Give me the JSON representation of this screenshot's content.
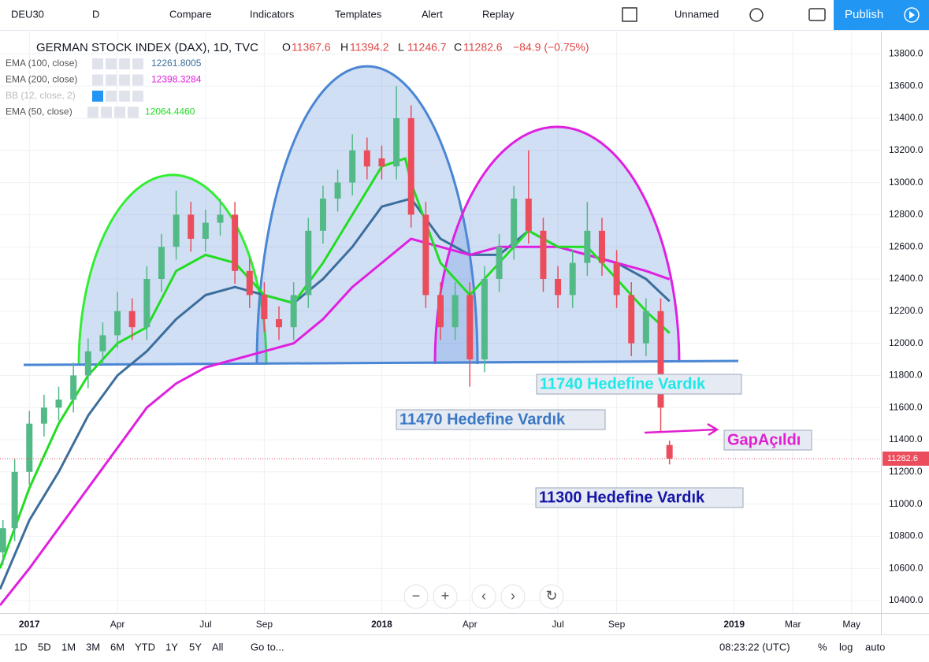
{
  "toolbar": {
    "symbol": "DEU30",
    "interval": "D",
    "buttons": [
      "Compare",
      "Indicators",
      "Templates",
      "Alert",
      "Replay"
    ],
    "layout_name": "Unnamed",
    "publish": "Publish"
  },
  "chart_data": {
    "type": "candlestick",
    "title": "GERMAN STOCK INDEX (DAX), 1D, TVC",
    "ohlc_letters": [
      "O",
      "H",
      "L",
      "C"
    ],
    "change": "−84.9 (−0.75%)",
    "x": [
      -0.9,
      -0.5,
      0,
      0.5,
      1,
      1.5,
      2,
      2.5,
      3,
      3.5,
      4,
      4.5,
      5,
      5.5,
      6,
      6.5,
      7,
      7.5,
      8,
      8.5,
      9,
      9.5,
      10,
      10.5,
      11,
      11.5,
      12,
      12.5,
      13,
      13.5,
      14,
      14.5,
      15,
      15.5,
      16,
      16.5,
      17,
      17.5,
      18,
      18.5,
      19,
      19.5,
      20,
      20.5,
      21,
      21.5,
      21.8
    ],
    "open": [
      10700,
      10850,
      11200,
      11500,
      11600,
      11650,
      11800,
      11950,
      12050,
      12200,
      12100,
      12400,
      12600,
      12800,
      12650,
      12750,
      12800,
      12450,
      12300,
      12150,
      12100,
      12300,
      12700,
      12900,
      13000,
      13200,
      13150,
      13100,
      13400,
      12800,
      12300,
      12100,
      12300,
      11900,
      12400,
      12600,
      12900,
      12700,
      12400,
      12300,
      12500,
      12700,
      12500,
      12300,
      12000,
      12200,
      11367.6
    ],
    "high": [
      10900,
      11280,
      11580,
      11680,
      11730,
      11880,
      12030,
      12130,
      12320,
      12280,
      12480,
      12680,
      12950,
      12880,
      12830,
      12900,
      12880,
      12530,
      12380,
      12230,
      12380,
      12780,
      12980,
      13080,
      13300,
      13280,
      13230,
      13600,
      13480,
      12880,
      12380,
      12380,
      12380,
      12480,
      12680,
      12980,
      13200,
      12780,
      12480,
      12580,
      12880,
      12780,
      12580,
      12380,
      12280,
      12280,
      11394.2
    ],
    "low": [
      10620,
      10770,
      11120,
      11420,
      11520,
      11570,
      11720,
      11870,
      11970,
      12020,
      12020,
      12320,
      12520,
      12570,
      12570,
      12670,
      12370,
      12220,
      12070,
      12020,
      12020,
      12220,
      12620,
      12820,
      12920,
      13020,
      13020,
      13020,
      12720,
      12220,
      12020,
      12020,
      11730,
      11820,
      12320,
      12520,
      12620,
      12320,
      12220,
      12220,
      12420,
      12420,
      12220,
      11920,
      11920,
      11450,
      11246.7
    ],
    "close": [
      10850,
      11200,
      11500,
      11600,
      11650,
      11800,
      11950,
      12050,
      12200,
      12100,
      12400,
      12600,
      12800,
      12650,
      12750,
      12800,
      12450,
      12300,
      12150,
      12100,
      12300,
      12700,
      12900,
      13000,
      13200,
      13100,
      13100,
      13400,
      12800,
      12300,
      12100,
      12300,
      11900,
      12400,
      12600,
      12900,
      12700,
      12400,
      12300,
      12500,
      12700,
      12500,
      12300,
      12000,
      12200,
      11600,
      11282.6
    ],
    "up_color": "#53b987",
    "down_color": "#eb4d5c",
    "indicators": [
      {
        "name": "EMA (100, close)",
        "value_label": "12261.8005",
        "color": "#3c6e9c",
        "x": [
          -1,
          0,
          1,
          2,
          3,
          4,
          5,
          6,
          7,
          8,
          9,
          10,
          11,
          12,
          13,
          14,
          15,
          16,
          17,
          18,
          19,
          20,
          21,
          21.8
        ],
        "values": [
          10470,
          10900,
          11200,
          11550,
          11800,
          11950,
          12150,
          12300,
          12350,
          12300,
          12250,
          12400,
          12600,
          12850,
          12900,
          12650,
          12550,
          12550,
          12700,
          12600,
          12550,
          12500,
          12400,
          12261.8
        ]
      },
      {
        "name": "EMA (200, close)",
        "value_label": "12398.3284",
        "color": "#e020e0",
        "x": [
          -1,
          0,
          1,
          2,
          3,
          4,
          5,
          6,
          7,
          8,
          9,
          10,
          11,
          12,
          13,
          14,
          15,
          16,
          17,
          18,
          19,
          20,
          21,
          21.8
        ],
        "values": [
          10370,
          10600,
          10850,
          11100,
          11350,
          11600,
          11750,
          11850,
          11900,
          11950,
          12000,
          12150,
          12350,
          12500,
          12650,
          12600,
          12550,
          12600,
          12600,
          12600,
          12550,
          12500,
          12450,
          12398.3
        ]
      },
      {
        "name": "BB (12, close, 2)"
      },
      {
        "name": "EMA (50, close)",
        "value_label": "12064.4460",
        "color": "#22dd22",
        "x": [
          -1,
          0,
          1,
          2,
          3,
          4,
          5,
          6,
          7,
          8,
          9,
          10,
          11,
          12,
          12.8,
          13,
          14,
          15,
          16,
          17,
          18,
          19,
          20,
          21,
          21.8
        ],
        "values": [
          10600,
          11100,
          11500,
          11800,
          12000,
          12100,
          12450,
          12550,
          12500,
          12300,
          12250,
          12500,
          12800,
          13100,
          13150,
          13000,
          12500,
          12300,
          12500,
          12700,
          12600,
          12600,
          12400,
          12200,
          12064.4
        ]
      }
    ],
    "annotations": [
      {
        "text": "11740 Hedefine Vardık",
        "color": "#1ee8e8"
      },
      {
        "text": "11470 Hedefine Vardık",
        "color": "#3b78c4"
      },
      {
        "text": "GapAçıldı",
        "color": "#e020d0"
      },
      {
        "text": "11300 Hedefine Vardık",
        "color": "#1515a8"
      }
    ],
    "xlim": [
      -1,
      29
    ],
    "xticks": [
      {
        "value": 0,
        "label": "2017"
      },
      {
        "value": 3,
        "label": "Apr"
      },
      {
        "value": 6,
        "label": "Jul"
      },
      {
        "value": 8,
        "label": "Sep"
      },
      {
        "value": 12,
        "label": "2018"
      },
      {
        "value": 15,
        "label": "Apr"
      },
      {
        "value": 18,
        "label": "Jul"
      },
      {
        "value": 20,
        "label": "Sep"
      },
      {
        "value": 24,
        "label": "2019"
      },
      {
        "value": 26,
        "label": "Mar"
      },
      {
        "value": 28,
        "label": "May"
      }
    ],
    "ylim": [
      10321.6,
      13939.2
    ],
    "yticks": [
      {
        "value": 10400,
        "label": "10400.0"
      },
      {
        "value": 10600,
        "label": "10600.0"
      },
      {
        "value": 10800,
        "label": "10800.0"
      },
      {
        "value": 11000,
        "label": "11000.0"
      },
      {
        "value": 11200,
        "label": "11200.0"
      },
      {
        "value": 11400,
        "label": "11400.0"
      },
      {
        "value": 11600,
        "label": "11600.0"
      },
      {
        "value": 11800,
        "label": "11800.0"
      },
      {
        "value": 12000,
        "label": "12000.0"
      },
      {
        "value": 12200,
        "label": "12200.0"
      },
      {
        "value": 12400,
        "label": "12400.0"
      },
      {
        "value": 12600,
        "label": "12600.0"
      },
      {
        "value": 12800,
        "label": "12800.0"
      },
      {
        "value": 13000,
        "label": "13000.0"
      },
      {
        "value": 13200,
        "label": "13200.0"
      },
      {
        "value": 13400,
        "label": "13400.0"
      },
      {
        "value": 13600,
        "label": "13600.0"
      },
      {
        "value": 13800,
        "label": "13800.0"
      }
    ],
    "grid": true
  },
  "bottom_bar": {
    "ranges": [
      "1D",
      "5D",
      "1M",
      "3M",
      "6M",
      "YTD",
      "1Y",
      "5Y",
      "All"
    ],
    "goto": "Go to...",
    "clock": "08:23:22 (UTC)",
    "options": [
      "%",
      "log",
      "auto"
    ]
  }
}
